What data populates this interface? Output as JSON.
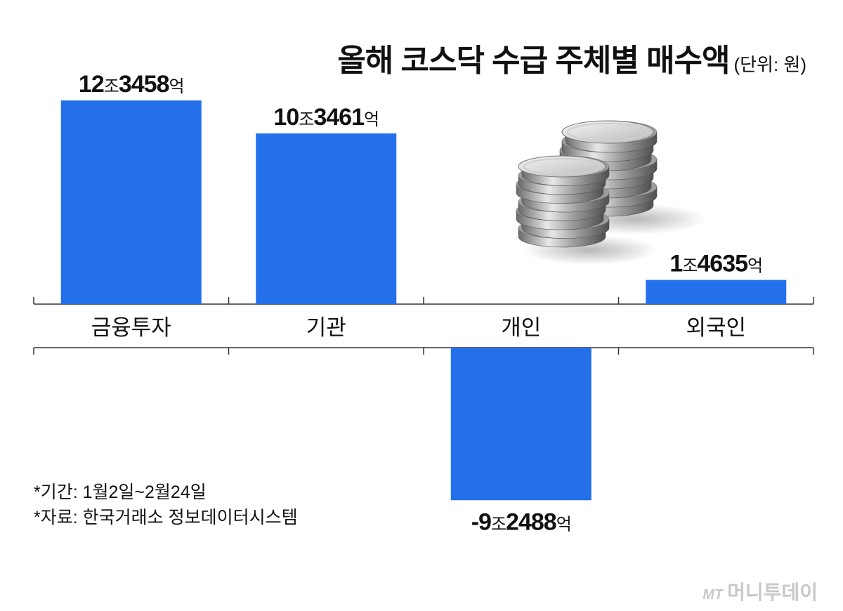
{
  "header": {
    "title": "올해 코스닥 수급 주체별 매수액",
    "unit": "(단위: 원)"
  },
  "chart_data": {
    "type": "bar",
    "title": "올해 코스닥 수급 주체별 매수액",
    "unit": "(단위: 원)",
    "categories": [
      "금융투자",
      "기관",
      "개인",
      "외국인"
    ],
    "values": [
      123458,
      103461,
      -92488,
      14635
    ],
    "value_unit": "억원",
    "labels": [
      {
        "num1": "12",
        "u1": "조",
        "num2": "3458",
        "u2": "억",
        "sign": ""
      },
      {
        "num1": "10",
        "u1": "조",
        "num2": "3461",
        "u2": "억",
        "sign": ""
      },
      {
        "num1": "9",
        "u1": "조",
        "num2": "2488",
        "u2": "억",
        "sign": "-"
      },
      {
        "num1": "1",
        "u1": "조",
        "num2": "4635",
        "u2": "억",
        "sign": ""
      }
    ],
    "colors": {
      "bar": "#2470EB",
      "axis": "#333333"
    }
  },
  "notes": {
    "period": "*기간: 1월2일~2월24일",
    "source": "*자료: 한국거래소 정보데이터시스템"
  },
  "watermark": {
    "mt": "MT",
    "name": "머니투데이"
  },
  "illustration": {
    "icon": "coin-stack-icon"
  }
}
